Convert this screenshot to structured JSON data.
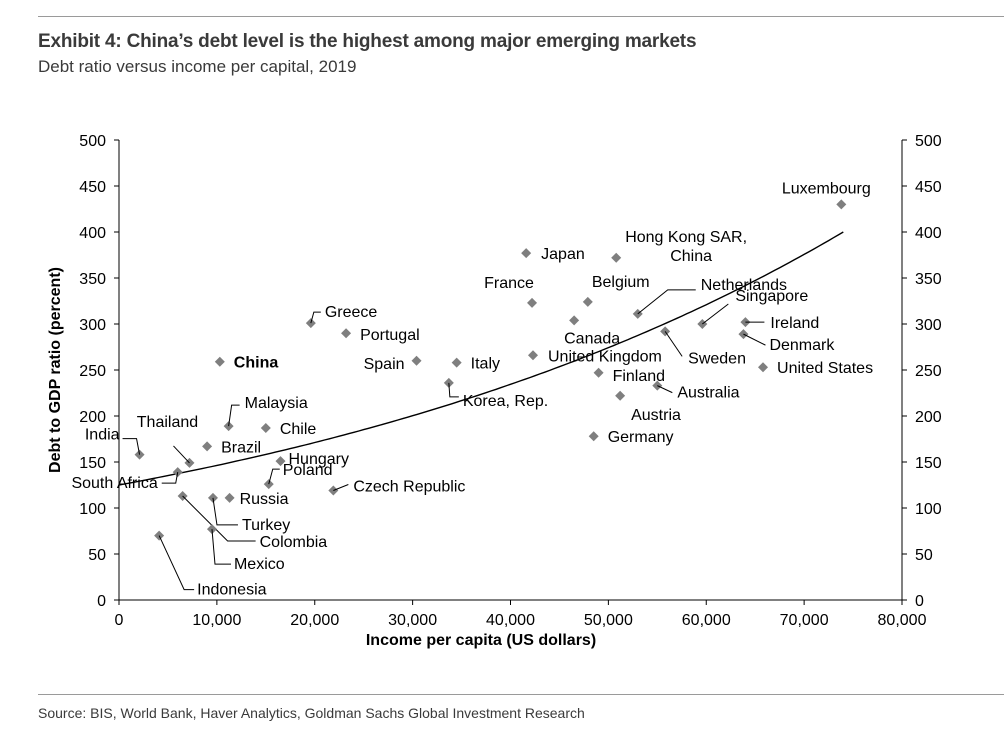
{
  "header": {
    "title": "Exhibit 4: China’s debt level is the highest among major emerging markets",
    "subtitle": "Debt ratio versus income per capital, 2019"
  },
  "footer": {
    "source": "Source: BIS, World Bank, Haver Analytics, Goldman Sachs Global Investment Research"
  },
  "colors": {
    "marker": "#7f7f7f",
    "axis": "#000000",
    "trend": "#000000",
    "text": "#000000"
  },
  "chart_data": {
    "type": "scatter",
    "title": "",
    "xlabel": "Income per capita (US dollars)",
    "ylabel": "Debt to GDP ratio (percent)",
    "xlim": [
      0,
      80000
    ],
    "ylim": [
      0,
      500
    ],
    "xticks": [
      0,
      10000,
      20000,
      30000,
      40000,
      50000,
      60000,
      70000,
      80000
    ],
    "xtick_labels": [
      "0",
      "10,000",
      "20,000",
      "30,000",
      "40,000",
      "50,000",
      "60,000",
      "70,000",
      "80,000"
    ],
    "yticks": [
      0,
      50,
      100,
      150,
      200,
      250,
      300,
      350,
      400,
      450,
      500
    ],
    "ytick_labels": [
      "0",
      "50",
      "100",
      "150",
      "200",
      "250",
      "300",
      "350",
      "400",
      "450",
      "500"
    ],
    "secondary_y_axis": true,
    "grid": false,
    "highlight": "China",
    "trendline": {
      "type": "exponential",
      "points": [
        {
          "x": 0,
          "y": 125
        },
        {
          "x": 10000,
          "y": 140
        },
        {
          "x": 20000,
          "y": 160
        },
        {
          "x": 30000,
          "y": 185
        },
        {
          "x": 40000,
          "y": 215
        },
        {
          "x": 50000,
          "y": 255
        },
        {
          "x": 60000,
          "y": 305
        },
        {
          "x": 70000,
          "y": 365
        },
        {
          "x": 74000,
          "y": 400
        }
      ]
    },
    "points": [
      {
        "label": "Luxembourg",
        "x": 73800,
        "y": 430
      },
      {
        "label": "Hong Kong SAR,\nChina",
        "x": 50800,
        "y": 372
      },
      {
        "label": "Japan",
        "x": 41600,
        "y": 377
      },
      {
        "label": "France",
        "x": 42200,
        "y": 323
      },
      {
        "label": "Belgium",
        "x": 47900,
        "y": 324
      },
      {
        "label": "Netherlands",
        "x": 53000,
        "y": 311
      },
      {
        "label": "Singapore",
        "x": 59600,
        "y": 300
      },
      {
        "label": "Ireland",
        "x": 64000,
        "y": 302
      },
      {
        "label": "Denmark",
        "x": 63800,
        "y": 289
      },
      {
        "label": "Sweden",
        "x": 55800,
        "y": 292
      },
      {
        "label": "Canada",
        "x": 46500,
        "y": 304
      },
      {
        "label": "United Kingdom",
        "x": 42300,
        "y": 266
      },
      {
        "label": "United States",
        "x": 65800,
        "y": 253
      },
      {
        "label": "Finland",
        "x": 49000,
        "y": 247
      },
      {
        "label": "Australia",
        "x": 55000,
        "y": 233
      },
      {
        "label": "Austria",
        "x": 51200,
        "y": 222
      },
      {
        "label": "Germany",
        "x": 48500,
        "y": 178
      },
      {
        "label": "Greece",
        "x": 19600,
        "y": 301
      },
      {
        "label": "Portugal",
        "x": 23200,
        "y": 290
      },
      {
        "label": "Spain",
        "x": 30400,
        "y": 260
      },
      {
        "label": "Italy",
        "x": 34500,
        "y": 258
      },
      {
        "label": "China",
        "x": 10300,
        "y": 259
      },
      {
        "label": "Korea, Rep.",
        "x": 33700,
        "y": 236
      },
      {
        "label": "Malaysia",
        "x": 11200,
        "y": 189
      },
      {
        "label": "Chile",
        "x": 15000,
        "y": 187
      },
      {
        "label": "Thailand",
        "x": 7200,
        "y": 149
      },
      {
        "label": "Brazil",
        "x": 9000,
        "y": 167
      },
      {
        "label": "India",
        "x": 2100,
        "y": 158
      },
      {
        "label": "Hungary",
        "x": 16500,
        "y": 151
      },
      {
        "label": "Poland",
        "x": 15300,
        "y": 126
      },
      {
        "label": "South Africa",
        "x": 6000,
        "y": 139
      },
      {
        "label": "Czech Republic",
        "x": 21900,
        "y": 119
      },
      {
        "label": "Russia",
        "x": 11300,
        "y": 111
      },
      {
        "label": "Turkey",
        "x": 9600,
        "y": 111
      },
      {
        "label": "Colombia",
        "x": 6500,
        "y": 113
      },
      {
        "label": "Mexico",
        "x": 9500,
        "y": 77
      },
      {
        "label": "Indonesia",
        "x": 4100,
        "y": 70
      }
    ]
  }
}
